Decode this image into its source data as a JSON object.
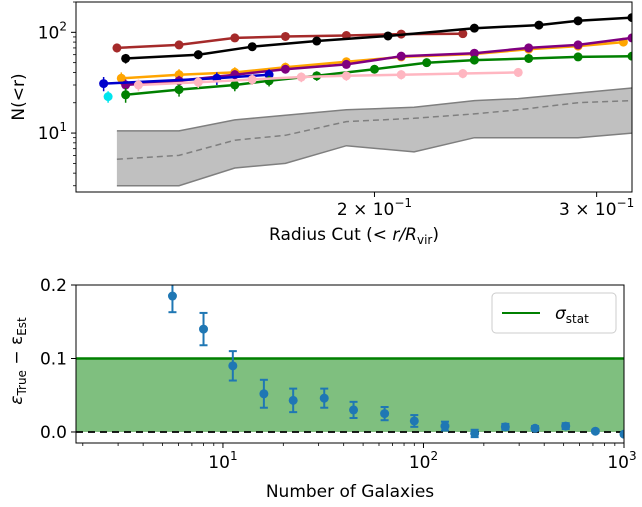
{
  "chart_data": [
    {
      "type": "line",
      "xscale": "log",
      "yscale": "log",
      "xlabel_text": "Radius Cut (",
      "xlabel_math": "< r/R",
      "xlabel_sub": "vir",
      "xlabel_close": ")",
      "ylabel": "N(<r)",
      "xlim": [
        0.116,
        0.32
      ],
      "ylim": [
        2.6,
        200
      ],
      "x_ticks": [
        {
          "value": 0.2,
          "base": "2 × 10",
          "exp": "−1"
        },
        {
          "value": 0.3,
          "base": "3 × 10",
          "exp": "−1"
        }
      ],
      "y_ticks": [
        {
          "value": 10,
          "base": "10",
          "exp": "1"
        },
        {
          "value": 100,
          "base": "10",
          "exp": "2"
        }
      ],
      "band": {
        "color": "#c0c0c0",
        "edge": "#7f7f7f",
        "x": [
          0.125,
          0.14,
          0.155,
          0.17,
          0.19,
          0.215,
          0.24,
          0.26,
          0.29,
          0.32
        ],
        "upper": [
          10.5,
          10.5,
          13.5,
          15,
          17,
          18,
          21,
          22,
          25,
          28
        ],
        "median": [
          5.5,
          6,
          8.5,
          9.5,
          13,
          14,
          15.5,
          17,
          20,
          21
        ],
        "lower": [
          3,
          3,
          4.5,
          5,
          7.5,
          6.5,
          9,
          9,
          9,
          10
        ]
      },
      "series": [
        {
          "color": "#a52a2a",
          "x": [
            0.125,
            0.14,
            0.155,
            0.17,
            0.19,
            0.21,
            0.235
          ],
          "y": [
            70,
            75,
            88,
            91,
            93,
            96,
            97
          ],
          "err": [
            7,
            7,
            6,
            6,
            6,
            6,
            6
          ]
        },
        {
          "color": "#000000",
          "x": [
            0.127,
            0.145,
            0.16,
            0.18,
            0.205,
            0.24,
            0.27,
            0.29,
            0.32
          ],
          "y": [
            55,
            60,
            72,
            82,
            92,
            110,
            118,
            130,
            140
          ],
          "err": [
            6,
            6,
            6,
            6,
            6,
            6,
            6,
            6,
            6
          ]
        },
        {
          "color": "#ffa500",
          "x": [
            0.126,
            0.14,
            0.155,
            0.17,
            0.19,
            0.21,
            0.24,
            0.265,
            0.29,
            0.315
          ],
          "y": [
            35,
            38,
            40,
            45,
            51,
            57,
            61,
            68,
            73,
            80
          ],
          "err": [
            5,
            5,
            5,
            5,
            5,
            5,
            5,
            5,
            5,
            5
          ]
        },
        {
          "color": "#800080",
          "x": [
            0.127,
            0.14,
            0.155,
            0.17,
            0.19,
            0.21,
            0.24,
            0.265,
            0.29,
            0.32
          ],
          "y": [
            30,
            33,
            38,
            43,
            48,
            58,
            62,
            70,
            75,
            88
          ],
          "err": [
            4,
            4,
            4,
            4,
            4,
            4,
            4,
            4,
            4,
            4
          ]
        },
        {
          "color": "#0000cd",
          "x": [
            0.122,
            0.15,
            0.165
          ],
          "y": [
            31,
            35,
            38
          ],
          "err": [
            5,
            5,
            5
          ]
        },
        {
          "color": "#008000",
          "x": [
            0.127,
            0.14,
            0.155,
            0.165,
            0.18,
            0.2,
            0.22,
            0.24,
            0.265,
            0.29,
            0.32
          ],
          "y": [
            24,
            27,
            30,
            33,
            37,
            43,
            50,
            53,
            55,
            57,
            58
          ],
          "err": [
            4,
            4,
            4,
            4,
            4,
            4,
            4,
            4,
            4,
            4,
            4
          ]
        },
        {
          "color": "#ffb6c1",
          "x": [
            0.13,
            0.145,
            0.16,
            0.175,
            0.19,
            0.21,
            0.235,
            0.26
          ],
          "y": [
            30,
            32,
            34,
            36,
            37,
            38,
            39,
            40
          ],
          "err": [
            4,
            4,
            4,
            4,
            4,
            4,
            4,
            4
          ]
        },
        {
          "color": "#00e5ee",
          "x": [
            0.123
          ],
          "y": [
            23
          ],
          "err": [
            3
          ]
        }
      ]
    },
    {
      "type": "scatter",
      "xscale": "log",
      "xlabel": "Number of Galaxies",
      "ylabel_parts": [
        "ε",
        "True",
        " − ε",
        "Est"
      ],
      "xlim": [
        1.85,
        1000
      ],
      "ylim": [
        -0.015,
        0.2
      ],
      "x_ticks": [
        {
          "value": 10,
          "base": "10",
          "exp": "1"
        },
        {
          "value": 100,
          "base": "10",
          "exp": "2"
        },
        {
          "value": 1000,
          "base": "10",
          "exp": "3"
        }
      ],
      "y_ticks": [
        {
          "value": 0.0,
          "label": "0.0"
        },
        {
          "value": 0.1,
          "label": "0.1"
        },
        {
          "value": 0.2,
          "label": "0.2"
        }
      ],
      "band": {
        "ymin": 0.0,
        "ymax": 0.1,
        "color": "#7fbf7f",
        "line_color": "#008000"
      },
      "zero_line": 0,
      "legend": {
        "label": "σ",
        "sub": "stat",
        "position": "top-right"
      },
      "marker_color": "#1f77b4",
      "points": [
        {
          "x": 5.6,
          "y": 0.185,
          "err": 0.022
        },
        {
          "x": 8.0,
          "y": 0.14,
          "err": 0.022
        },
        {
          "x": 11.2,
          "y": 0.09,
          "err": 0.02
        },
        {
          "x": 16.0,
          "y": 0.052,
          "err": 0.019
        },
        {
          "x": 22.4,
          "y": 0.043,
          "err": 0.016
        },
        {
          "x": 32.0,
          "y": 0.046,
          "err": 0.013
        },
        {
          "x": 44.8,
          "y": 0.03,
          "err": 0.011
        },
        {
          "x": 64.0,
          "y": 0.025,
          "err": 0.009
        },
        {
          "x": 90.0,
          "y": 0.015,
          "err": 0.008
        },
        {
          "x": 128,
          "y": 0.008,
          "err": 0.006
        },
        {
          "x": 180,
          "y": -0.002,
          "err": 0.005
        },
        {
          "x": 256,
          "y": 0.007,
          "err": 0.004
        },
        {
          "x": 360,
          "y": 0.005,
          "err": 0.003
        },
        {
          "x": 512,
          "y": 0.008,
          "err": 0.004
        },
        {
          "x": 720,
          "y": 0.001,
          "err": 0.002
        },
        {
          "x": 1000,
          "y": -0.003,
          "err": 0.002
        }
      ]
    }
  ]
}
